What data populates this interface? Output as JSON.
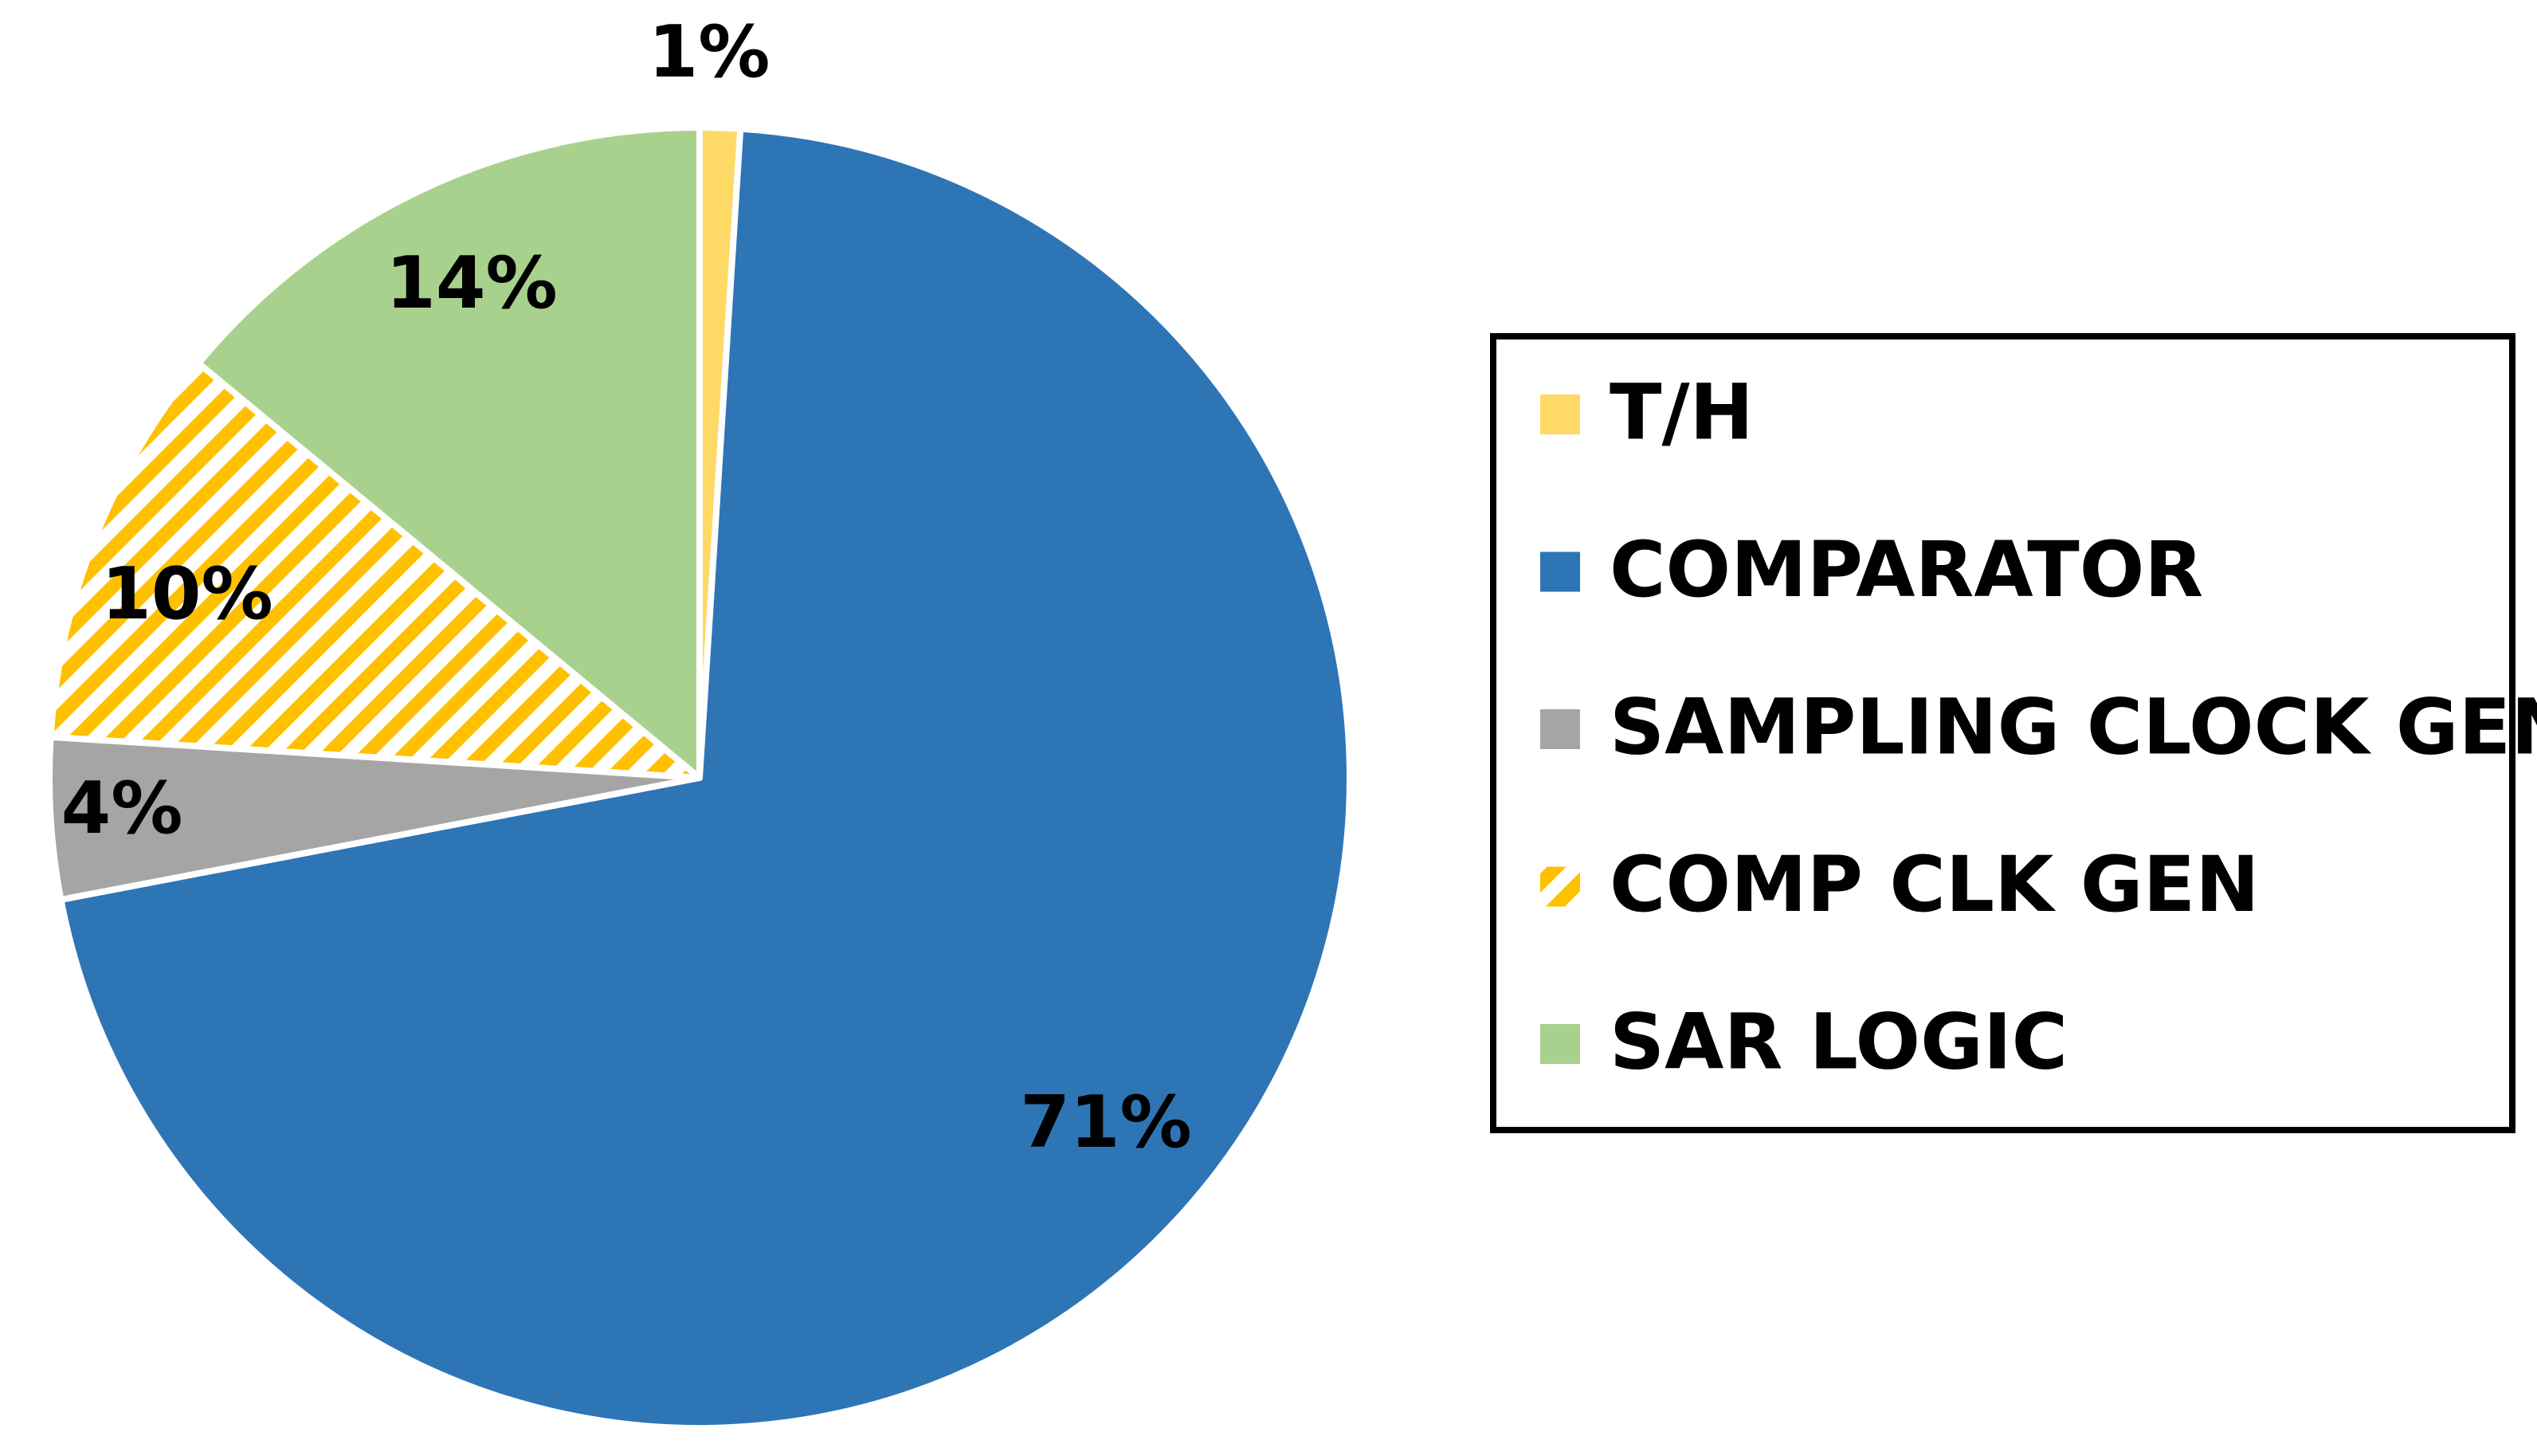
{
  "chart_data": {
    "type": "pie",
    "categories": [
      "T/H",
      "COMPARATOR",
      "SAMPLING CLOCK GEN",
      "COMP CLK GEN",
      "SAR LOGIC"
    ],
    "values": [
      1,
      71,
      4,
      10,
      14
    ],
    "value_labels": [
      "1%",
      "71%",
      "4%",
      "10%",
      "14%"
    ],
    "colors": [
      "#FFD966",
      "#2E75B6",
      "#A5A5A5",
      "#FFC000",
      "#A9D18E"
    ],
    "hatched": [
      false,
      false,
      false,
      true,
      false
    ],
    "legend": "right"
  }
}
